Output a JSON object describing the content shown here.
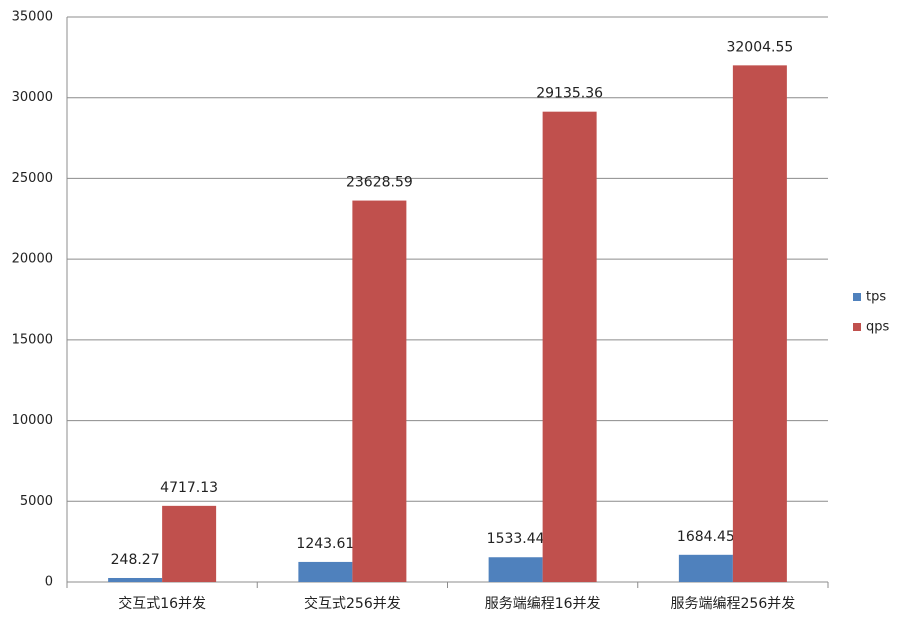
{
  "chart_data": {
    "type": "bar",
    "categories": [
      "交互式16并发",
      "交互式256并发",
      "服务端编程16并发",
      "服务端编程256并发"
    ],
    "series": [
      {
        "name": "tps",
        "color": "#4f81bd",
        "values": [
          248.27,
          1243.61,
          1533.44,
          1684.45
        ]
      },
      {
        "name": "qps",
        "color": "#c0504d",
        "values": [
          4717.13,
          23628.59,
          29135.36,
          32004.55
        ]
      }
    ],
    "ylim": [
      0,
      35000
    ],
    "yticks": [
      0,
      5000,
      10000,
      15000,
      20000,
      25000,
      30000,
      35000
    ],
    "grid": true,
    "legend": "right"
  }
}
